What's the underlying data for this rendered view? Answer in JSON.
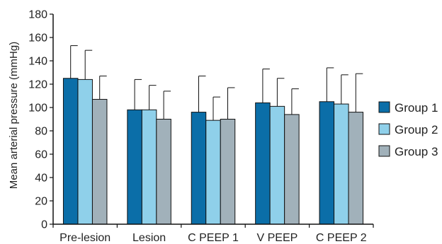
{
  "chart_data": {
    "type": "bar",
    "title": "",
    "xlabel": "",
    "ylabel": "Mean arterial pressure (mmHg)",
    "ylim": [
      0,
      180
    ],
    "yticks": [
      0,
      20,
      40,
      60,
      80,
      100,
      120,
      140,
      160,
      180
    ],
    "grid": false,
    "legend_position": "right",
    "categories": [
      "Pre-lesion",
      "Lesion",
      "C PEEP 1",
      "V PEEP",
      "C PEEP 2"
    ],
    "series": [
      {
        "name": "Group 1",
        "color": "#0b6ea8",
        "values": [
          125,
          98,
          96,
          104,
          105
        ],
        "error_upper": [
          153,
          124,
          127,
          133,
          134
        ]
      },
      {
        "name": "Group 2",
        "color": "#8fd0ea",
        "values": [
          124,
          98,
          89,
          101,
          103
        ],
        "error_upper": [
          149,
          119,
          109,
          125,
          128
        ]
      },
      {
        "name": "Group 3",
        "color": "#a1b1ba",
        "values": [
          107,
          90,
          90,
          94,
          96
        ],
        "error_upper": [
          127,
          114,
          117,
          116,
          129
        ]
      }
    ]
  }
}
